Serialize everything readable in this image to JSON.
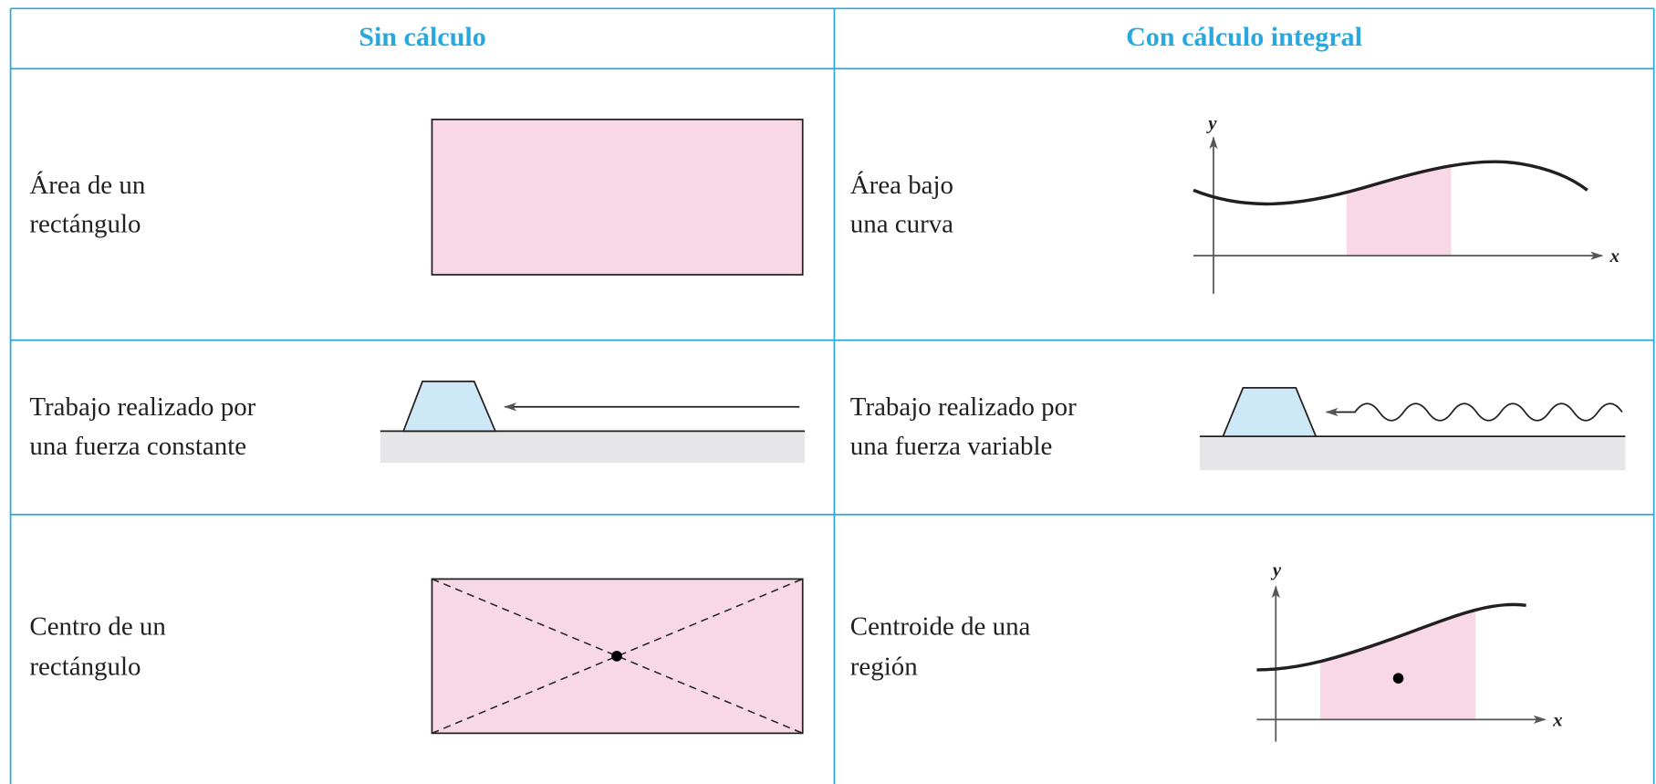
{
  "table": {
    "headers": [
      "Sin cálculo",
      "Con cálculo integral"
    ],
    "rows": [
      [
        {
          "lines": [
            "Área de un",
            "rectángulo"
          ]
        },
        {
          "lines": [
            "Área bajo",
            "una curva"
          ]
        }
      ],
      [
        {
          "lines": [
            "Trabajo realizado por",
            "una fuerza constante"
          ]
        },
        {
          "lines": [
            "Trabajo realizado por",
            "una fuerza variable"
          ]
        }
      ],
      [
        {
          "lines": [
            "Centro de un",
            "rectángulo"
          ]
        },
        {
          "lines": [
            "Centroide de una",
            "región"
          ]
        }
      ]
    ]
  },
  "diagrams": {
    "area_curve": {
      "y_label": "y",
      "x_label": "x"
    },
    "centroid_region": {
      "y_label": "y",
      "x_label": "x"
    }
  }
}
